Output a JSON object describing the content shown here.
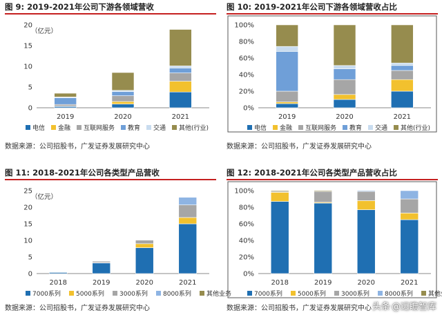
{
  "panels": [
    {
      "label": "图 9:",
      "title": "2019-2021年公司下游各领域营收",
      "source": "数据来源：公司招股书，广发证券发展研究中心"
    },
    {
      "label": "图 10:",
      "title": "2019-2021年公司下游各领域营收占比",
      "source": "数据来源：公司招股书，广发证券发展研究中心"
    },
    {
      "label": "图 11:",
      "title": "2018-2021年公司各类型产品营收",
      "source": "数据来源：公司招股书，广发证券发展研究中心"
    },
    {
      "label": "图 12:",
      "title": "2018-2021年公司各类型产品营收占比",
      "source": "数据来源：公司招股书，广发证券发展研究中心"
    }
  ],
  "watermark": {
    "brand": "头条",
    "handle": "@远瞻智库"
  },
  "chart_data": [
    {
      "type": "bar",
      "stacked": true,
      "title": "2019-2021年公司下游各领域营收",
      "unit_label": "（亿元）",
      "categories": [
        "2019",
        "2020",
        "2021"
      ],
      "ylim": [
        0,
        20
      ],
      "yticks": [
        "0",
        "5",
        "10",
        "15",
        "20"
      ],
      "legend_position": "bottom",
      "series": [
        {
          "name": "电信",
          "color": "#1f6fb2",
          "values": [
            0.3,
            0.9,
            3.8
          ]
        },
        {
          "name": "金融",
          "color": "#f2c12e",
          "values": [
            0.1,
            0.6,
            2.6
          ]
        },
        {
          "name": "互联网服务",
          "color": "#a6a6a6",
          "values": [
            0.4,
            1.4,
            2.0
          ]
        },
        {
          "name": "教育",
          "color": "#6f9fd8",
          "values": [
            1.6,
            1.0,
            1.2
          ]
        },
        {
          "name": "交通",
          "color": "#c9dcef",
          "values": [
            0.2,
            0.3,
            0.5
          ]
        },
        {
          "name": "其他(行业)",
          "color": "#968c4e",
          "values": [
            0.9,
            4.3,
            8.8
          ]
        }
      ]
    },
    {
      "type": "bar",
      "stacked": true,
      "title": "2019-2021年公司下游各领域营收占比",
      "categories": [
        "2019",
        "2020",
        "2021"
      ],
      "ylim": [
        0,
        100
      ],
      "yticks": [
        "0%",
        "20%",
        "40%",
        "60%",
        "80%",
        "100%"
      ],
      "legend_position": "bottom",
      "series": [
        {
          "name": "电信",
          "color": "#1f6fb2",
          "values": [
            5,
            10,
            20
          ]
        },
        {
          "name": "金融",
          "color": "#f2c12e",
          "values": [
            2,
            6,
            14
          ]
        },
        {
          "name": "互联网服务",
          "color": "#a6a6a6",
          "values": [
            13,
            18,
            11
          ]
        },
        {
          "name": "教育",
          "color": "#6f9fd8",
          "values": [
            48,
            13,
            6
          ]
        },
        {
          "name": "交通",
          "color": "#c9dcef",
          "values": [
            6,
            4,
            3
          ]
        },
        {
          "name": "其他(行业)",
          "color": "#968c4e",
          "values": [
            26,
            49,
            46
          ]
        }
      ]
    },
    {
      "type": "bar",
      "stacked": true,
      "title": "2018-2021年公司各类型产品营收",
      "unit_label": "（亿元）",
      "categories": [
        "2018",
        "2019",
        "2020",
        "2021"
      ],
      "ylim": [
        0,
        25
      ],
      "yticks": [
        "0",
        "5",
        "10",
        "15",
        "20",
        "25"
      ],
      "legend_position": "bottom",
      "series": [
        {
          "name": "7000系列",
          "color": "#1f6fb2",
          "values": [
            0.4,
            3.2,
            7.8,
            15.0
          ]
        },
        {
          "name": "5000系列",
          "color": "#f2c12e",
          "values": [
            0.05,
            0.1,
            1.2,
            1.9
          ]
        },
        {
          "name": "3000系列",
          "color": "#a6a6a6",
          "values": [
            0.0,
            0.4,
            1.1,
            3.8
          ]
        },
        {
          "name": "8000系列",
          "color": "#8eb4e3",
          "values": [
            0.0,
            0.0,
            0.1,
            2.3
          ]
        },
        {
          "name": "其他业务",
          "color": "#968c4e",
          "values": [
            0.0,
            0.0,
            0.0,
            0.0
          ]
        }
      ]
    },
    {
      "type": "bar",
      "stacked": true,
      "title": "2018-2021年公司各类型产品营收占比",
      "categories": [
        "2018",
        "2019",
        "2020",
        "2021"
      ],
      "ylim": [
        0,
        100
      ],
      "yticks": [
        "0%",
        "20%",
        "40%",
        "60%",
        "80%",
        "100%"
      ],
      "legend_position": "bottom",
      "series": [
        {
          "name": "7000系列",
          "color": "#1f6fb2",
          "values": [
            87,
            85,
            77,
            65
          ]
        },
        {
          "name": "5000系列",
          "color": "#f2c12e",
          "values": [
            11,
            1,
            11,
            8
          ]
        },
        {
          "name": "3000系列",
          "color": "#a6a6a6",
          "values": [
            1,
            13,
            11,
            17
          ]
        },
        {
          "name": "8000系列",
          "color": "#8eb4e3",
          "values": [
            0,
            0,
            1,
            10
          ]
        },
        {
          "name": "其他业务",
          "color": "#968c4e",
          "values": [
            1,
            1,
            0,
            0
          ]
        }
      ]
    }
  ]
}
